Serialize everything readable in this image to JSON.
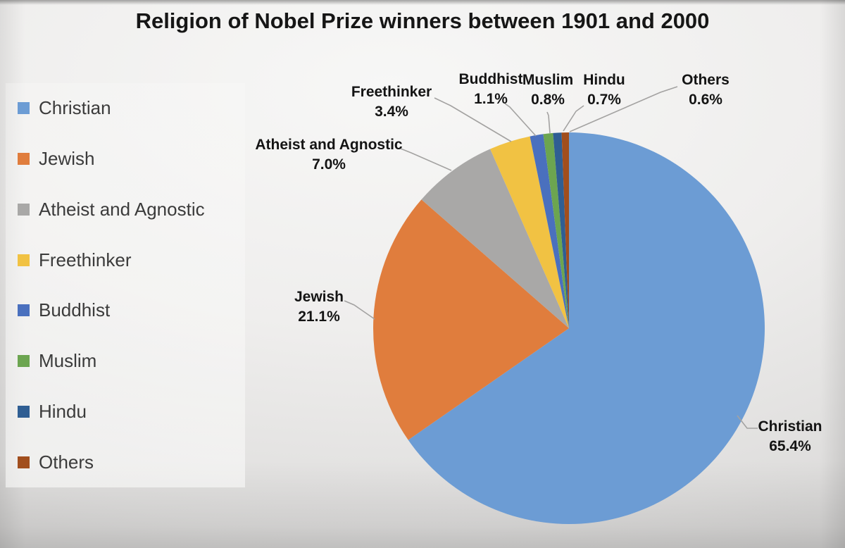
{
  "chart_data": {
    "type": "pie",
    "title": "Religion of Nobel Prize winners between 1901 and 2000",
    "unit": "percent",
    "start_angle_deg": 0,
    "direction": "clockwise",
    "legend_position": "left",
    "categories": [
      "Christian",
      "Jewish",
      "Atheist and Agnostic",
      "Freethinker",
      "Buddhist",
      "Muslim",
      "Hindu",
      "Others"
    ],
    "values": [
      65.4,
      21.1,
      7.0,
      3.4,
      1.1,
      0.8,
      0.7,
      0.6
    ],
    "slices": [
      {
        "label": "Christian",
        "value": 65.4,
        "pct_text": "65.4%",
        "color": "#6C9CD4"
      },
      {
        "label": "Jewish",
        "value": 21.1,
        "pct_text": "21.1%",
        "color": "#E07D3D"
      },
      {
        "label": "Atheist and Agnostic",
        "value": 7.0,
        "pct_text": "7.0%",
        "color": "#A9A8A7"
      },
      {
        "label": "Freethinker",
        "value": 3.4,
        "pct_text": "3.4%",
        "color": "#F1C243"
      },
      {
        "label": "Buddhist",
        "value": 1.1,
        "pct_text": "1.1%",
        "color": "#4A70BE"
      },
      {
        "label": "Muslim",
        "value": 0.8,
        "pct_text": "0.8%",
        "color": "#6CA550"
      },
      {
        "label": "Hindu",
        "value": 0.7,
        "pct_text": "0.7%",
        "color": "#2F5E93"
      },
      {
        "label": "Others",
        "value": 0.6,
        "pct_text": "0.6%",
        "color": "#A14E1D"
      }
    ],
    "leader_line_color": "#a3a2a1"
  }
}
